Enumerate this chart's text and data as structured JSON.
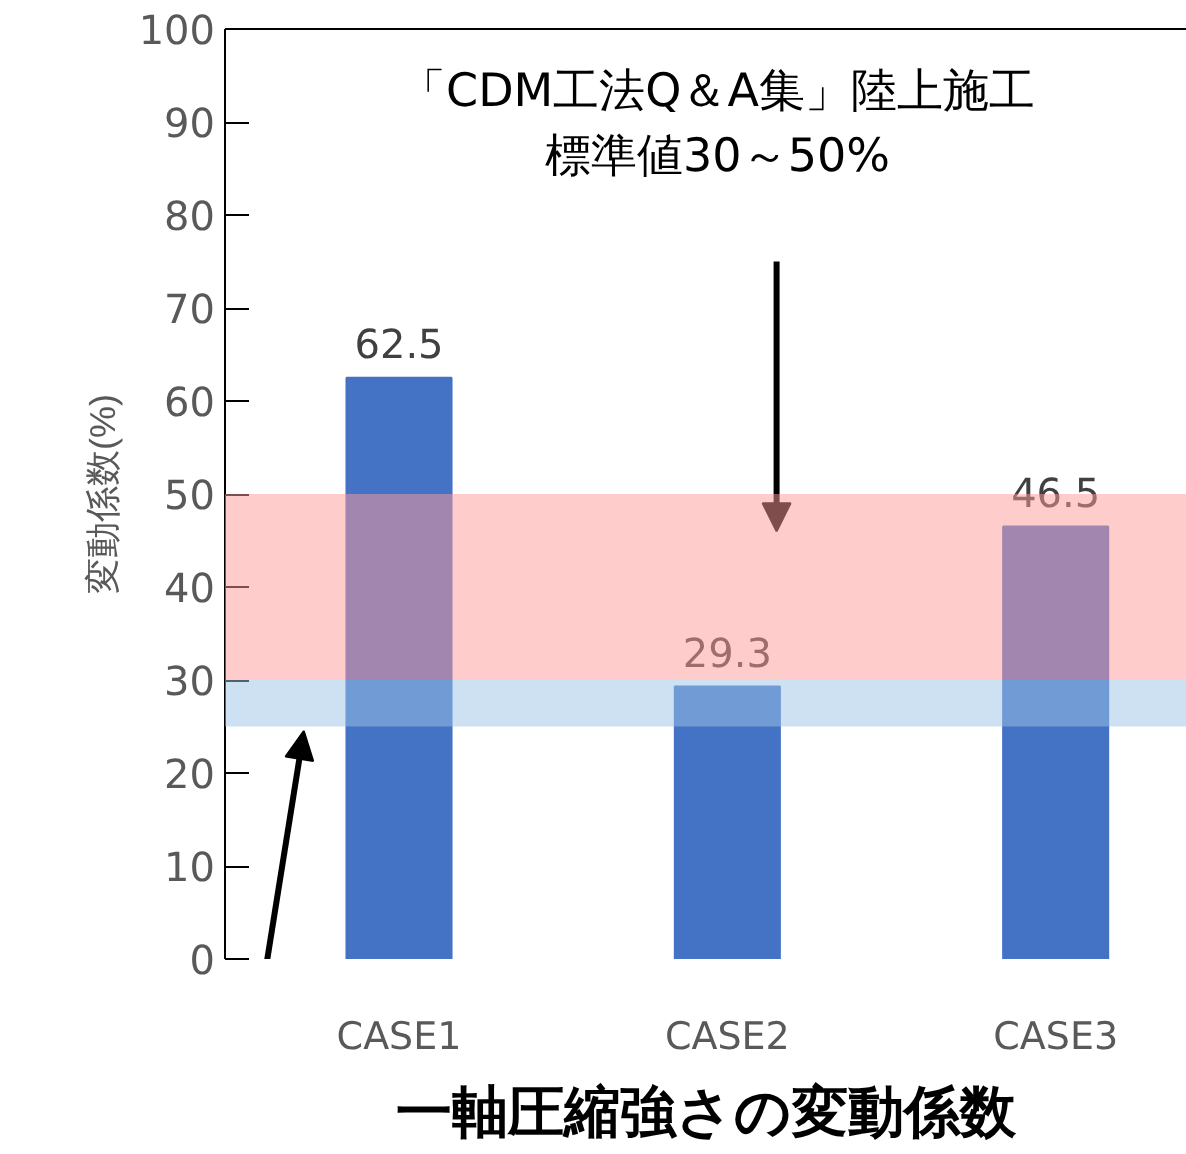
{
  "chart_data": {
    "type": "bar",
    "title": "一軸圧縮強さの変動係数",
    "ylabel": "変動係数(%)",
    "categories": [
      "CASE1",
      "CASE2",
      "CASE3"
    ],
    "values": [
      62.5,
      29.3,
      46.5
    ],
    "color": "#4472c4",
    "data_labels": true,
    "ylim": [
      0,
      100
    ],
    "yticks": [
      0,
      10,
      20,
      30,
      40,
      50,
      60,
      70,
      80,
      90,
      100
    ],
    "grid": false,
    "annotations": [
      "「CDM工法Q＆A集」陸上施工",
      "標準値30～50%"
    ],
    "bands": [
      {
        "axis": "y",
        "from": 30,
        "to": 50,
        "color": "#ff9999"
      },
      {
        "axis": "y",
        "from": 25,
        "to": 30,
        "color": "#9dc3e6"
      }
    ]
  }
}
